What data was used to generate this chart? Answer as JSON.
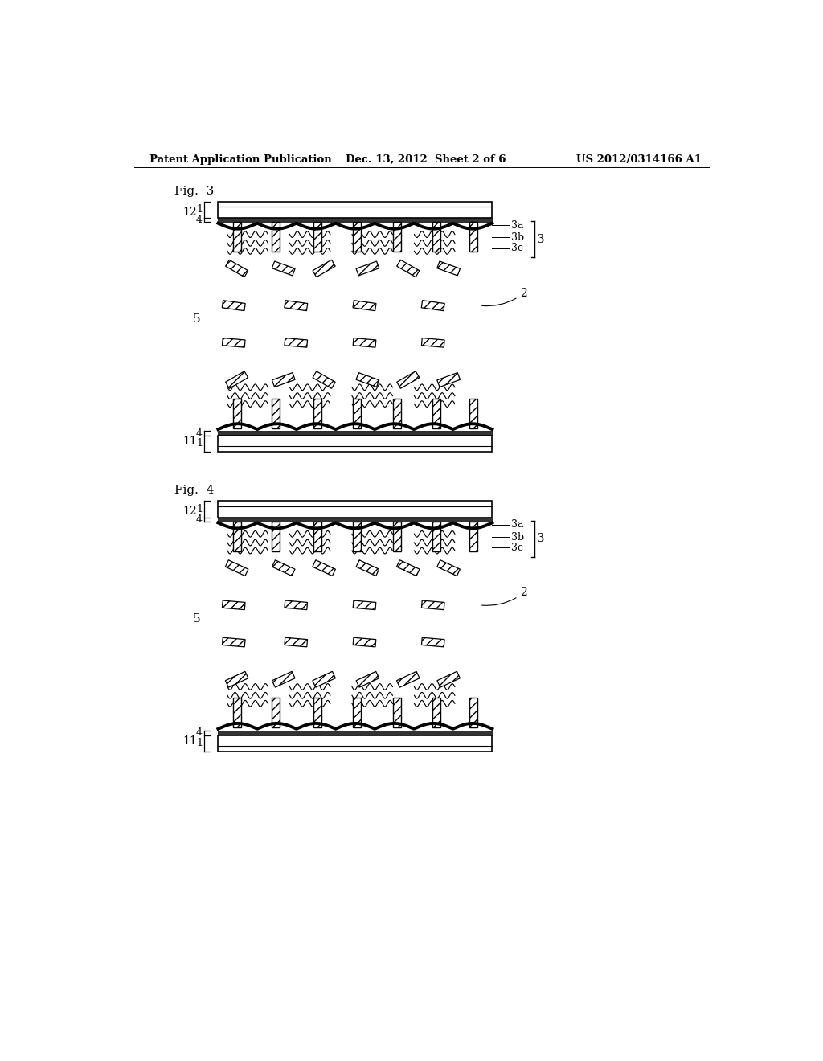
{
  "header_left": "Patent Application Publication",
  "header_center": "Dec. 13, 2012  Sheet 2 of 6",
  "header_right": "US 2012/0314166 A1",
  "fig3_label": "Fig.  3",
  "fig4_label": "Fig.  4",
  "bg_color": "#ffffff",
  "line_color": "#000000"
}
